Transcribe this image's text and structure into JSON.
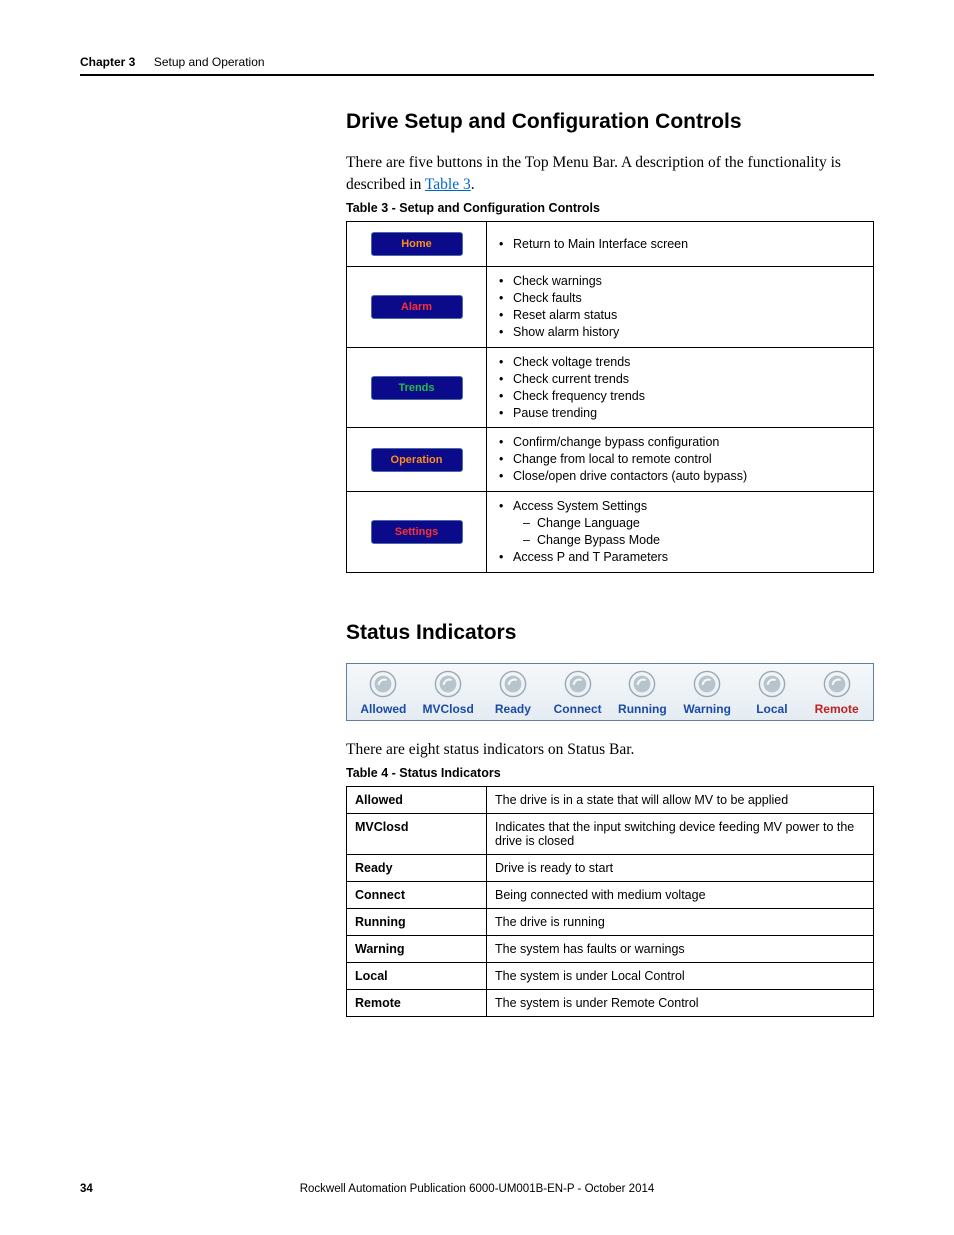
{
  "header": {
    "chapter": "Chapter 3",
    "title": "Setup and Operation"
  },
  "section1": {
    "heading": "Drive Setup and Configuration Controls",
    "intro_a": "There are five buttons in the Top Menu Bar. A description of the functionality is described in ",
    "intro_link": "Table 3",
    "intro_b": ".",
    "table_caption": "Table 3 - Setup and Configuration Controls",
    "buttons": {
      "home": {
        "label": "Home",
        "color": "#ff8c1a"
      },
      "alarm": {
        "label": "Alarm",
        "color": "#ff3030"
      },
      "trends": {
        "label": "Trends",
        "color": "#20c040"
      },
      "operation": {
        "label": "Operation",
        "color": "#ff8c1a"
      },
      "settings": {
        "label": "Settings",
        "color": "#ff3030"
      }
    },
    "rows": {
      "home": {
        "items": [
          "Return to Main Interface screen"
        ]
      },
      "alarm": {
        "items": [
          "Check warnings",
          "Check faults",
          "Reset alarm status",
          "Show alarm history"
        ]
      },
      "trends": {
        "items": [
          "Check voltage trends",
          "Check current trends",
          "Check frequency trends",
          "Pause trending"
        ]
      },
      "operation": {
        "items": [
          "Confirm/change bypass configuration",
          "Change from local to remote control",
          "Close/open drive contactors (auto bypass)"
        ]
      },
      "settings": {
        "items": [
          "Access System Settings"
        ],
        "sub": [
          "Change Language",
          "Change Bypass Mode"
        ],
        "tail": "Access P and T Parameters"
      }
    }
  },
  "section2": {
    "heading": "Status Indicators",
    "body": "There are eight status indicators on Status Bar.",
    "table_caption": "Table 4 - Status Indicators",
    "leds": [
      {
        "label": "Allowed",
        "color": "#1a4aa8"
      },
      {
        "label": "MVClosd",
        "color": "#1a4aa8"
      },
      {
        "label": "Ready",
        "color": "#1a4aa8"
      },
      {
        "label": "Connect",
        "color": "#1a4aa8"
      },
      {
        "label": "Running",
        "color": "#1a4aa8"
      },
      {
        "label": "Warning",
        "color": "#1a4aa8"
      },
      {
        "label": "Local",
        "color": "#1a4aa8"
      },
      {
        "label": "Remote",
        "color": "#c02020"
      }
    ],
    "rows": [
      {
        "name": "Allowed",
        "desc": "The drive is in a state that will allow MV to be applied"
      },
      {
        "name": "MVClosd",
        "desc": "Indicates that the input switching device feeding MV power to the drive is closed"
      },
      {
        "name": "Ready",
        "desc": "Drive is ready to start"
      },
      {
        "name": "Connect",
        "desc": "Being connected with medium voltage"
      },
      {
        "name": "Running",
        "desc": "The drive is running"
      },
      {
        "name": "Warning",
        "desc": "The system has faults or warnings"
      },
      {
        "name": "Local",
        "desc": "The system is under Local Control"
      },
      {
        "name": "Remote",
        "desc": "The system is under Remote Control"
      }
    ]
  },
  "footer": {
    "page": "34",
    "pub": "Rockwell Automation Publication 6000-UM001B-EN-P - October 2014"
  }
}
